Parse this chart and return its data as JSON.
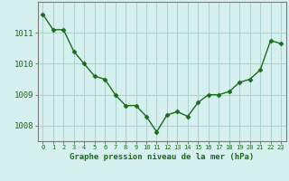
{
  "x": [
    0,
    1,
    2,
    3,
    4,
    5,
    6,
    7,
    8,
    9,
    10,
    11,
    12,
    13,
    14,
    15,
    16,
    17,
    18,
    19,
    20,
    21,
    22,
    23
  ],
  "y": [
    1011.6,
    1011.1,
    1011.1,
    1010.4,
    1010.0,
    1009.6,
    1009.5,
    1009.0,
    1008.65,
    1008.65,
    1008.3,
    1007.8,
    1008.35,
    1008.45,
    1008.3,
    1008.75,
    1009.0,
    1009.0,
    1009.1,
    1009.4,
    1009.5,
    1009.8,
    1010.75,
    1010.65
  ],
  "line_color": "#1a6b1a",
  "marker_color": "#1a6b1a",
  "bg_color": "#d6f0ef",
  "grid_color": "#aed4d0",
  "xlabel": "Graphe pression niveau de la mer (hPa)",
  "xlabel_color": "#1a6b1a",
  "tick_color": "#1a6b1a",
  "axis_color": "#7a7a7a",
  "ylim": [
    1007.5,
    1012.0
  ],
  "yticks": [
    1008,
    1009,
    1010,
    1011
  ],
  "xticks": [
    0,
    1,
    2,
    3,
    4,
    5,
    6,
    7,
    8,
    9,
    10,
    11,
    12,
    13,
    14,
    15,
    16,
    17,
    18,
    19,
    20,
    21,
    22,
    23
  ]
}
